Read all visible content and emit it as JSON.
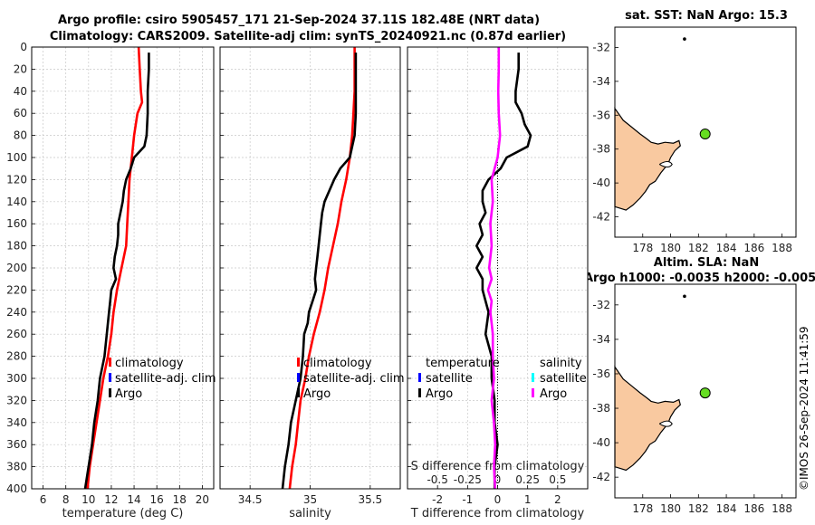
{
  "figure": {
    "title_line1": "Argo profile: csiro 5905457_171 21-Sep-2024 37.11S 182.48E (NRT data)",
    "title_line2": "Climatology: CARS2009. Satellite-adj clim: synTS_20240921.nc (0.87d earlier)",
    "watermark": "©IMOS 26-Sep-2024 11:41:59"
  },
  "chart_data": [
    {
      "id": "temperature",
      "type": "line",
      "xlabel": "temperature (deg C)",
      "ylabel": "",
      "xlim": [
        5,
        21
      ],
      "ylim": [
        400,
        0
      ],
      "xticks": [
        6,
        8,
        10,
        12,
        14,
        16,
        18,
        20
      ],
      "xtick_labels": [
        "6",
        "8",
        "10",
        "12",
        "14",
        "16",
        "18",
        "20"
      ],
      "yticks": [
        0,
        20,
        40,
        60,
        80,
        100,
        120,
        140,
        160,
        180,
        200,
        220,
        240,
        260,
        280,
        300,
        320,
        340,
        360,
        380,
        400
      ],
      "ytick_labels": [
        "0",
        "20",
        "40",
        "60",
        "80",
        "100",
        "120",
        "140",
        "160",
        "180",
        "200",
        "220",
        "240",
        "260",
        "280",
        "300",
        "320",
        "340",
        "360",
        "380",
        "400"
      ],
      "grid": true,
      "legend": [
        "climatology",
        "satellite-adj. clim",
        "Argo"
      ],
      "legend_colors": [
        "#ff0000",
        "#0000ff",
        "#000000"
      ],
      "series": [
        {
          "name": "climatology",
          "color": "#ff0000",
          "depth": [
            0,
            20,
            40,
            50,
            60,
            80,
            100,
            120,
            140,
            160,
            180,
            200,
            220,
            240,
            260,
            280,
            300,
            320,
            340,
            360,
            380,
            400
          ],
          "values": [
            14.4,
            14.5,
            14.6,
            14.7,
            14.3,
            14.0,
            13.8,
            13.6,
            13.5,
            13.4,
            13.3,
            12.9,
            12.5,
            12.2,
            12.0,
            11.7,
            11.3,
            11.0,
            10.7,
            10.4,
            10.1,
            9.9
          ]
        },
        {
          "name": "Argo",
          "color": "#000000",
          "depth": [
            5,
            20,
            40,
            60,
            80,
            90,
            100,
            110,
            120,
            130,
            140,
            150,
            160,
            170,
            180,
            190,
            200,
            210,
            220,
            230,
            240,
            260,
            280,
            300,
            320,
            340,
            360,
            380,
            400
          ],
          "values": [
            15.3,
            15.3,
            15.2,
            15.2,
            15.1,
            14.9,
            14.0,
            13.7,
            13.3,
            13.1,
            13.0,
            12.8,
            12.6,
            12.6,
            12.5,
            12.3,
            12.2,
            12.4,
            12.0,
            11.9,
            11.8,
            11.6,
            11.4,
            11.0,
            10.8,
            10.5,
            10.3,
            10.0,
            9.7
          ]
        }
      ]
    },
    {
      "id": "salinity",
      "type": "line",
      "xlabel": "salinity",
      "ylabel": "",
      "xlim": [
        34.25,
        35.75
      ],
      "ylim": [
        400,
        0
      ],
      "xticks": [
        34.5,
        35,
        35.5
      ],
      "xtick_labels": [
        "34.5",
        "35",
        "35.5"
      ],
      "grid": true,
      "legend": [
        "climatology",
        "satellite-adj. clim",
        "Argo"
      ],
      "legend_colors": [
        "#ff0000",
        "#0000ff",
        "#000000"
      ],
      "series": [
        {
          "name": "climatology",
          "color": "#ff0000",
          "depth": [
            0,
            20,
            40,
            60,
            80,
            100,
            120,
            140,
            160,
            180,
            200,
            220,
            240,
            260,
            280,
            300,
            320,
            340,
            360,
            380,
            400
          ],
          "values": [
            35.37,
            35.37,
            35.37,
            35.36,
            35.35,
            35.33,
            35.3,
            35.26,
            35.23,
            35.19,
            35.15,
            35.12,
            35.08,
            35.03,
            34.99,
            34.96,
            34.92,
            34.9,
            34.88,
            34.85,
            34.83
          ]
        },
        {
          "name": "Argo",
          "color": "#000000",
          "depth": [
            5,
            20,
            40,
            60,
            80,
            95,
            100,
            110,
            120,
            130,
            140,
            150,
            160,
            170,
            180,
            190,
            200,
            210,
            220,
            230,
            240,
            250,
            260,
            280,
            300,
            320,
            340,
            360,
            380,
            400
          ],
          "values": [
            35.38,
            35.38,
            35.38,
            35.38,
            35.37,
            35.34,
            35.33,
            35.25,
            35.2,
            35.16,
            35.12,
            35.1,
            35.09,
            35.08,
            35.07,
            35.06,
            35.05,
            35.04,
            35.05,
            35.02,
            34.99,
            34.98,
            34.95,
            34.94,
            34.92,
            34.88,
            34.84,
            34.82,
            34.79,
            34.77
          ]
        }
      ]
    },
    {
      "id": "differences",
      "type": "line",
      "xlabel": "T difference from climatology",
      "top_label": "S difference from climatology",
      "xlim": [
        -3,
        3
      ],
      "ylim": [
        400,
        0
      ],
      "xticks": [
        -2,
        -1,
        0,
        1,
        2
      ],
      "xtick_labels": [
        "-2",
        "-1",
        "0",
        "1",
        "2"
      ],
      "top_ticks": [
        -0.5,
        -0.25,
        0,
        0.25,
        0.5
      ],
      "top_tick_labels": [
        "-0.5",
        "-0.25",
        "0",
        "0.25",
        "0.5"
      ],
      "grid": true,
      "legend_temperature": {
        "title": "temperature",
        "items": [
          "satellite",
          "Argo"
        ],
        "colors": [
          "#0000ff",
          "#000000"
        ]
      },
      "legend_salinity": {
        "title": "salinity",
        "items": [
          "satellite",
          "Argo"
        ],
        "colors": [
          "#00ffff",
          "#ff00ff"
        ]
      },
      "series": [
        {
          "name": "T Argo",
          "color": "#000000",
          "depth": [
            5,
            20,
            40,
            50,
            60,
            70,
            80,
            90,
            100,
            110,
            120,
            130,
            140,
            150,
            160,
            170,
            180,
            190,
            200,
            210,
            220,
            230,
            240,
            260,
            280,
            300,
            320,
            340,
            360,
            380,
            400
          ],
          "values": [
            0.7,
            0.7,
            0.6,
            0.6,
            0.8,
            0.9,
            1.1,
            1.0,
            0.3,
            0.1,
            -0.3,
            -0.5,
            -0.5,
            -0.4,
            -0.6,
            -0.5,
            -0.7,
            -0.5,
            -0.7,
            -0.5,
            -0.5,
            -0.4,
            -0.3,
            -0.4,
            -0.2,
            -0.2,
            -0.1,
            -0.1,
            0,
            -0.1,
            -0.1
          ]
        },
        {
          "name": "S Argo",
          "color": "#ff00ff",
          "depth": [
            0,
            20,
            40,
            60,
            80,
            100,
            120,
            140,
            160,
            180,
            200,
            210,
            220,
            230,
            240,
            250,
            260,
            280,
            300,
            320,
            340,
            360,
            380,
            400
          ],
          "values": [
            0.01,
            0.01,
            0.005,
            0.01,
            0.02,
            0.0,
            -0.05,
            -0.04,
            -0.06,
            -0.05,
            -0.07,
            -0.05,
            -0.08,
            -0.05,
            -0.06,
            -0.05,
            -0.04,
            -0.04,
            -0.03,
            -0.05,
            -0.03,
            -0.02,
            -0.03,
            -0.02
          ]
        }
      ]
    },
    {
      "id": "sst_map",
      "type": "scatter",
      "title": "sat. SST: NaN Argo: 15.3",
      "xlim": [
        176,
        189
      ],
      "ylim": [
        -43.2,
        -30.8
      ],
      "xticks": [
        178,
        180,
        182,
        184,
        186,
        188
      ],
      "xtick_labels": [
        "178",
        "180",
        "182",
        "184",
        "186",
        "188"
      ],
      "yticks": [
        -32,
        -34,
        -36,
        -38,
        -40,
        -42
      ],
      "ytick_labels": [
        "-32",
        "-34",
        "-36",
        "-38",
        "-40",
        "-42"
      ],
      "points": [
        {
          "lon": 182.48,
          "lat": -37.11,
          "color": "#66dd22",
          "label": "Argo float"
        },
        {
          "lon": 181.0,
          "lat": -31.5,
          "color": "#000000",
          "label": "island"
        }
      ]
    },
    {
      "id": "sla_map",
      "type": "scatter",
      "title_line1": "Altim. SLA: NaN",
      "title_line2": "Argo h1000: -0.0035 h2000: -0.005",
      "xlim": [
        176,
        189
      ],
      "ylim": [
        -43.2,
        -30.8
      ],
      "xticks": [
        178,
        180,
        182,
        184,
        186,
        188
      ],
      "xtick_labels": [
        "178",
        "180",
        "182",
        "184",
        "186",
        "188"
      ],
      "yticks": [
        -32,
        -34,
        -36,
        -38,
        -40,
        -42
      ],
      "ytick_labels": [
        "-32",
        "-34",
        "-36",
        "-38",
        "-40",
        "-42"
      ],
      "points": [
        {
          "lon": 182.48,
          "lat": -37.11,
          "color": "#66dd22",
          "label": "Argo float"
        },
        {
          "lon": 181.0,
          "lat": -31.5,
          "color": "#000000",
          "label": "island"
        }
      ]
    }
  ]
}
